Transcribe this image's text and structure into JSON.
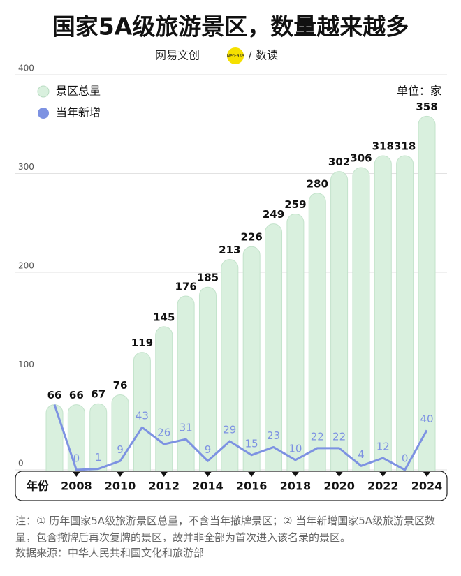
{
  "title": "国家5A级旅游景区，数量越来越多",
  "brand": {
    "name": "网易文创",
    "badge": "NetEase",
    "separator": "/",
    "section": "数读"
  },
  "chart_data": {
    "type": "bar-line",
    "unit": "单位：家",
    "x_label": "年份",
    "categories": [
      null,
      "2008",
      null,
      "2010",
      null,
      "2012",
      null,
      "2014",
      null,
      "2016",
      null,
      "2018",
      null,
      "2020",
      null,
      "2022",
      null,
      "2024"
    ],
    "ylim": [
      0,
      400
    ],
    "yticks": [
      0,
      100,
      200,
      300,
      400
    ],
    "grid": true,
    "legend": "top-left",
    "series": [
      {
        "name": "景区总量",
        "type": "bar",
        "color": "#d9f0de",
        "values": [
          66,
          66,
          67,
          76,
          119,
          145,
          176,
          185,
          213,
          226,
          249,
          259,
          280,
          302,
          306,
          318,
          318,
          358
        ]
      },
      {
        "name": "当年新增",
        "type": "line",
        "color": "#7d92e2",
        "values": [
          66,
          0,
          1,
          9,
          43,
          26,
          31,
          9,
          29,
          15,
          23,
          10,
          22,
          22,
          4,
          12,
          0,
          40
        ]
      }
    ]
  },
  "notes": "注：① 历年国家5A级旅游景区总量，不含当年撤牌景区；② 当年新增国家5A级旅游景区数量，包含撤牌后再次复牌的景区，故并非全部为首次进入该名录的景区。",
  "source": "数据来源：中华人民共和国文化和旅游部"
}
